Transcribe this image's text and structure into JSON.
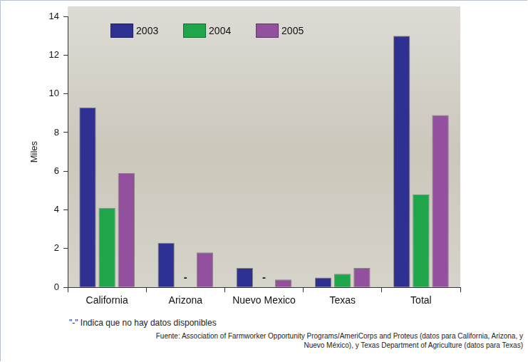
{
  "chart_data": {
    "type": "bar",
    "y_label": "Miles",
    "categories": [
      "California",
      "Arizona",
      "Nuevo Mexico",
      "Texas",
      "Total"
    ],
    "series": [
      {
        "name": "2003",
        "color": "#2e3192",
        "values": [
          9.3,
          2.3,
          1.0,
          0.5,
          13.0
        ]
      },
      {
        "name": "2004",
        "color": "#1fa64a",
        "values": [
          4.1,
          null,
          null,
          0.7,
          4.8
        ],
        "value_labels": [
          null,
          "-",
          "-",
          null,
          null
        ]
      },
      {
        "name": "2005",
        "color": "#92509f",
        "values": [
          5.9,
          1.8,
          0.4,
          1.0,
          8.9
        ]
      }
    ],
    "ylim": [
      0,
      14
    ],
    "yticks": [
      0,
      2,
      4,
      6,
      8,
      10,
      12,
      14
    ],
    "grid": false,
    "legend": "top left",
    "footnote": "\"-\" Indica que no hay datos disponibles",
    "source": "Fuente: Association of Farmworker Opportunity Programs/AmeriCorps and Proteus (datos para California, Arizona, y Nuevo México), y Texas Department of Agriculture (datos para Texas)"
  }
}
